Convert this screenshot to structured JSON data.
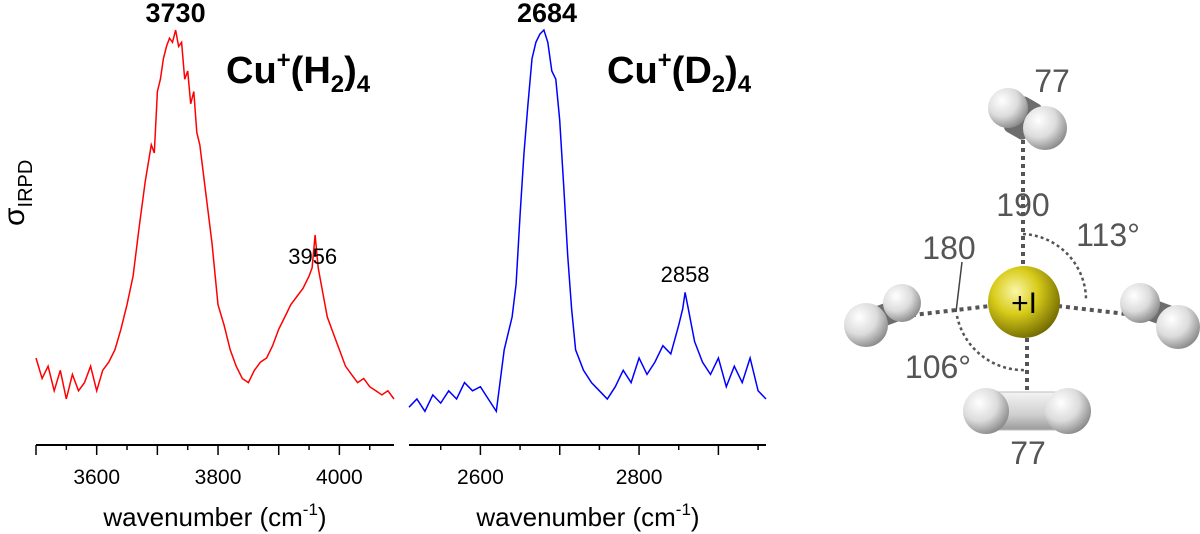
{
  "ylabel": "σ",
  "ylabel_sub": "IRPD",
  "chart_data": [
    {
      "type": "line",
      "title_base": "Cu",
      "title_sup": "+",
      "title_mid": "(H",
      "title_sub1": "2",
      "title_end": ")",
      "title_sub2": "4",
      "title_color": "#ff0000",
      "line_color": "#ff0000",
      "xlabel": "wavenumber (cm",
      "xlabel_sup": "-1",
      "xlabel_end": ")",
      "xlim": [
        3500,
        4090
      ],
      "xticks": [
        3600,
        3800,
        4000
      ],
      "ylim": [
        0,
        1
      ],
      "series": [
        {
          "x": [
            3500,
            3510,
            3520,
            3530,
            3540,
            3550,
            3560,
            3570,
            3580,
            3590,
            3600,
            3610,
            3620,
            3630,
            3640,
            3650,
            3660,
            3670,
            3680,
            3690,
            3695,
            3700,
            3705,
            3710,
            3715,
            3720,
            3725,
            3730,
            3735,
            3740,
            3745,
            3750,
            3755,
            3760,
            3765,
            3770,
            3780,
            3790,
            3800,
            3810,
            3820,
            3830,
            3840,
            3850,
            3860,
            3870,
            3880,
            3890,
            3900,
            3910,
            3920,
            3930,
            3940,
            3950,
            3955,
            3960,
            3965,
            3970,
            3980,
            3990,
            4000,
            4010,
            4020,
            4030,
            4040,
            4050,
            4060,
            4070,
            4080,
            4090
          ],
          "values": [
            0.2,
            0.15,
            0.18,
            0.12,
            0.17,
            0.1,
            0.16,
            0.12,
            0.14,
            0.18,
            0.12,
            0.17,
            0.19,
            0.22,
            0.27,
            0.33,
            0.4,
            0.52,
            0.63,
            0.72,
            0.7,
            0.85,
            0.88,
            0.93,
            0.96,
            0.98,
            0.97,
            1.0,
            0.96,
            0.97,
            0.88,
            0.9,
            0.82,
            0.85,
            0.75,
            0.72,
            0.6,
            0.48,
            0.33,
            0.28,
            0.22,
            0.18,
            0.15,
            0.14,
            0.17,
            0.19,
            0.2,
            0.23,
            0.27,
            0.3,
            0.33,
            0.35,
            0.37,
            0.4,
            0.42,
            0.5,
            0.42,
            0.38,
            0.3,
            0.26,
            0.22,
            0.18,
            0.16,
            0.14,
            0.15,
            0.13,
            0.12,
            0.11,
            0.12,
            0.1
          ]
        }
      ],
      "annotations": [
        {
          "label": "3730",
          "bold": true
        },
        {
          "label": "3956",
          "bold": false
        }
      ]
    },
    {
      "type": "line",
      "title_base": "Cu",
      "title_sup": "+",
      "title_mid": "(D",
      "title_sub1": "2",
      "title_end": ")",
      "title_sub2": "4",
      "title_color": "#0000ff",
      "line_color": "#0000ff",
      "xlabel": "wavenumber (cm",
      "xlabel_sup": "-1",
      "xlabel_end": ")",
      "xlim": [
        2510,
        2960
      ],
      "xticks": [
        2600,
        2800
      ],
      "ylim": [
        0,
        1
      ],
      "series": [
        {
          "x": [
            2510,
            2520,
            2530,
            2540,
            2550,
            2560,
            2570,
            2580,
            2590,
            2600,
            2610,
            2620,
            2630,
            2640,
            2645,
            2650,
            2655,
            2660,
            2665,
            2670,
            2675,
            2680,
            2685,
            2690,
            2695,
            2700,
            2705,
            2710,
            2715,
            2720,
            2730,
            2740,
            2750,
            2760,
            2770,
            2780,
            2790,
            2800,
            2810,
            2820,
            2830,
            2840,
            2850,
            2855,
            2858,
            2862,
            2870,
            2880,
            2890,
            2900,
            2910,
            2920,
            2930,
            2940,
            2950,
            2960
          ],
          "values": [
            0.08,
            0.1,
            0.07,
            0.11,
            0.09,
            0.12,
            0.1,
            0.14,
            0.12,
            0.13,
            0.1,
            0.07,
            0.22,
            0.3,
            0.38,
            0.55,
            0.7,
            0.82,
            0.93,
            0.97,
            0.99,
            1.0,
            0.97,
            0.9,
            0.88,
            0.78,
            0.62,
            0.45,
            0.32,
            0.22,
            0.17,
            0.14,
            0.12,
            0.1,
            0.13,
            0.17,
            0.14,
            0.2,
            0.16,
            0.19,
            0.23,
            0.21,
            0.28,
            0.32,
            0.36,
            0.32,
            0.24,
            0.19,
            0.16,
            0.2,
            0.13,
            0.18,
            0.14,
            0.2,
            0.12,
            0.1
          ]
        }
      ],
      "annotations": [
        {
          "label": "2684",
          "bold": true
        },
        {
          "label": "2858",
          "bold": false
        }
      ]
    }
  ],
  "molecule": {
    "metal_label": "+I",
    "dist_top_h2": "77",
    "dist_bottom_h2": "77",
    "dist_cu_top": "190",
    "dist_cu_left": "180",
    "angle_top_right": "113°",
    "angle_bottom_left": "106°"
  }
}
